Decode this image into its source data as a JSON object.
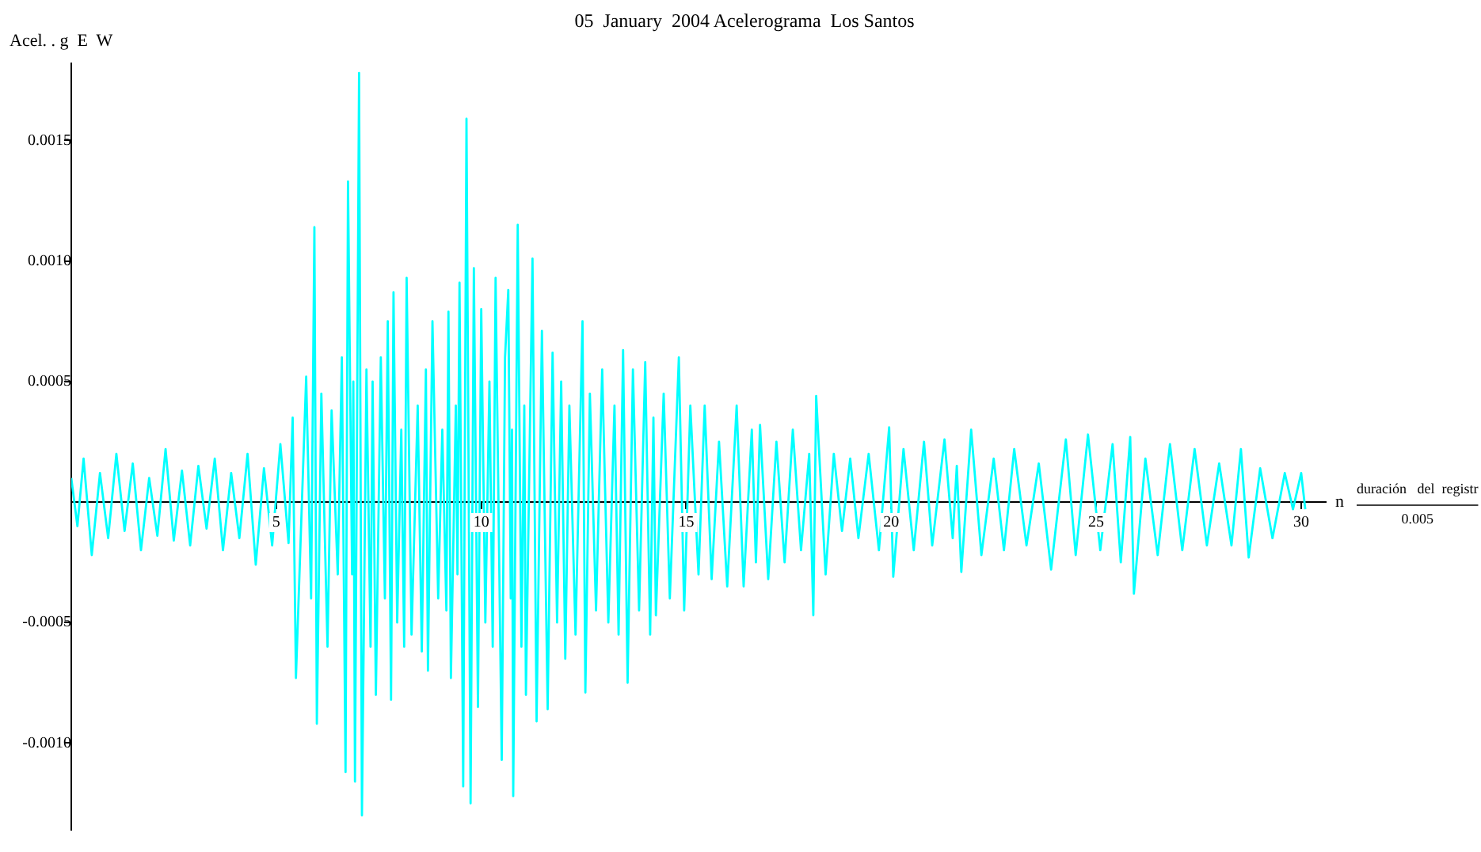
{
  "chart_data": {
    "type": "line",
    "title": "05  January  2004 Acelerograma  Los Santos",
    "ylabel": "Acel. . g  E  W",
    "xlabel": "n",
    "annotations": [
      "duración   del  registr",
      "0.005"
    ],
    "x": [
      0,
      0.15,
      0.3,
      0.5,
      0.7,
      0.9,
      1.1,
      1.3,
      1.5,
      1.7,
      1.9,
      2.1,
      2.3,
      2.5,
      2.7,
      2.9,
      3.1,
      3.3,
      3.5,
      3.7,
      3.9,
      4.1,
      4.3,
      4.5,
      4.7,
      4.9,
      5.1,
      5.3,
      5.4,
      5.48,
      5.73,
      5.85,
      5.93,
      5.99,
      6.1,
      6.25,
      6.35,
      6.5,
      6.6,
      6.69,
      6.75,
      6.85,
      6.88,
      6.92,
      7.02,
      7.09,
      7.2,
      7.3,
      7.35,
      7.43,
      7.55,
      7.65,
      7.72,
      7.8,
      7.86,
      7.95,
      8.05,
      8.12,
      8.18,
      8.3,
      8.45,
      8.55,
      8.65,
      8.7,
      8.81,
      8.95,
      9.05,
      9.15,
      9.2,
      9.26,
      9.38,
      9.42,
      9.47,
      9.56,
      9.64,
      9.74,
      9.82,
      9.92,
      10,
      10.1,
      10.2,
      10.28,
      10.35,
      10.5,
      10.58,
      10.66,
      10.72,
      10.75,
      10.78,
      10.89,
      10.98,
      11.05,
      11.09,
      11.25,
      11.35,
      11.48,
      11.62,
      11.74,
      11.85,
      11.95,
      12.05,
      12.15,
      12.3,
      12.47,
      12.54,
      12.65,
      12.8,
      12.95,
      13.1,
      13.25,
      13.35,
      13.46,
      13.57,
      13.7,
      13.85,
      14,
      14.12,
      14.2,
      14.26,
      14.45,
      14.6,
      14.82,
      14.95,
      15.1,
      15.3,
      15.45,
      15.62,
      15.8,
      16,
      16.23,
      16.4,
      16.6,
      16.7,
      16.8,
      17,
      17.2,
      17.4,
      17.6,
      17.8,
      18,
      18.1,
      18.17,
      18.4,
      18.6,
      18.8,
      19,
      19.2,
      19.45,
      19.7,
      19.95,
      20.05,
      20.3,
      20.55,
      20.8,
      21,
      21.3,
      21.5,
      21.6,
      21.71,
      21.95,
      22.2,
      22.5,
      22.75,
      23,
      23.3,
      23.6,
      23.9,
      24.26,
      24.5,
      24.8,
      25.1,
      25.4,
      25.6,
      25.83,
      25.92,
      26.2,
      26.5,
      26.8,
      27.1,
      27.4,
      27.7,
      28,
      28.3,
      28.53,
      28.72,
      29,
      29.3,
      29.6,
      29.8,
      30,
      30.1
    ],
    "series": [
      {
        "color": "#00ffff",
        "values": [
          0.0001,
          -0.0001,
          0.00018,
          -0.00022,
          0.00012,
          -0.00015,
          0.0002,
          -0.00012,
          0.00016,
          -0.0002,
          0.0001,
          -0.00014,
          0.00022,
          -0.00016,
          0.00013,
          -0.00018,
          0.00015,
          -0.00011,
          0.00018,
          -0.0002,
          0.00012,
          -0.00015,
          0.0002,
          -0.00026,
          0.00014,
          -0.00018,
          0.00024,
          -0.00017,
          0.00035,
          -0.00073,
          0.00052,
          -0.0004,
          0.00114,
          -0.00092,
          0.00045,
          -0.0006,
          0.00038,
          -0.0003,
          0.0006,
          -0.00112,
          0.00133,
          -0.0003,
          0.0005,
          -0.00116,
          0.00178,
          -0.0013,
          0.00055,
          -0.0006,
          0.0005,
          -0.0008,
          0.0006,
          -0.0004,
          0.00075,
          -0.00082,
          0.00087,
          -0.0005,
          0.0003,
          -0.0006,
          0.00093,
          -0.00055,
          0.0004,
          -0.00062,
          0.00055,
          -0.0007,
          0.00075,
          -0.0004,
          0.0003,
          -0.00045,
          0.00079,
          -0.00073,
          0.0004,
          -0.0003,
          0.00091,
          -0.00118,
          0.00159,
          -0.00125,
          0.00097,
          -0.00085,
          0.0008,
          -0.0005,
          0.0005,
          -0.0006,
          0.00093,
          -0.00107,
          0.0006,
          0.00088,
          -0.0004,
          0.0003,
          -0.00122,
          0.00115,
          -0.0006,
          0.0004,
          -0.0008,
          0.00101,
          -0.00091,
          0.00071,
          -0.00086,
          0.00062,
          -0.0005,
          0.0005,
          -0.00065,
          0.0004,
          -0.00055,
          0.00075,
          -0.00079,
          0.00045,
          -0.00045,
          0.00055,
          -0.0005,
          0.0004,
          -0.00055,
          0.00063,
          -0.00075,
          0.00055,
          -0.00045,
          0.00058,
          -0.00055,
          0.00035,
          -0.00047,
          0.00045,
          -0.0004,
          0.0006,
          -0.00045,
          0.0004,
          -0.0003,
          0.0004,
          -0.00032,
          0.00025,
          -0.00035,
          0.0004,
          -0.00035,
          0.0003,
          -0.00025,
          0.00032,
          -0.00032,
          0.00025,
          -0.00025,
          0.0003,
          -0.0002,
          0.0002,
          -0.00047,
          0.00044,
          -0.0003,
          0.0002,
          -0.00012,
          0.00018,
          -0.00015,
          0.0002,
          -0.0002,
          0.00031,
          -0.00031,
          0.00022,
          -0.0002,
          0.00025,
          -0.00018,
          0.00026,
          -0.00015,
          0.00015,
          -0.00029,
          0.0003,
          -0.00022,
          0.00018,
          -0.0002,
          0.00022,
          -0.00018,
          0.00016,
          -0.00028,
          0.00026,
          -0.00022,
          0.00028,
          -0.0002,
          0.00024,
          -0.00025,
          0.00027,
          -0.00038,
          0.00018,
          -0.00022,
          0.00024,
          -0.0002,
          0.00022,
          -0.00018,
          0.00016,
          -0.00018,
          0.00022,
          -0.00023,
          0.00014,
          -0.00015,
          0.00012,
          -3e-05,
          0.00012,
          -3e-05
        ]
      }
    ],
    "xlim": [
      0,
      30.6
    ],
    "xticks": [
      5,
      10,
      15,
      20,
      25,
      30
    ],
    "ylim": [
      -0.00136,
      0.00182
    ],
    "yticks": [
      {
        "value": 0.0015,
        "label": "0.0015"
      },
      {
        "value": 0.001,
        "label": "0.0010"
      },
      {
        "value": 0.0005,
        "label": "0.0005"
      },
      {
        "value": -0.0005,
        "label": "-0.0005"
      },
      {
        "value": -0.001,
        "label": "-0.0010"
      }
    ],
    "grid": false,
    "legend": false,
    "marker": "none",
    "line_style": "solid"
  }
}
